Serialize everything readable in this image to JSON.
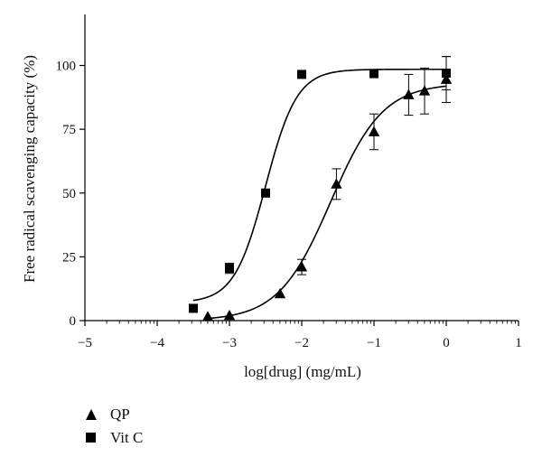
{
  "chart_data": {
    "type": "scatter",
    "xlabel": "log[drug] (mg/mL)",
    "ylabel": "Free radical scavenging capacity (%)",
    "xlim": [
      -5,
      1
    ],
    "ylim": [
      0,
      120
    ],
    "xticks": [
      -5,
      -4,
      -3,
      -2,
      -1,
      0,
      1
    ],
    "xtick_labels": [
      "−5",
      "−4",
      "−3",
      "−2",
      "−1",
      "0",
      "1"
    ],
    "yticks": [
      0,
      25,
      50,
      75,
      100
    ],
    "ytick_labels": [
      "0",
      "25",
      "50",
      "75",
      "100"
    ],
    "grid": false,
    "legend_position": "bottom-left",
    "series": [
      {
        "name": "QP",
        "marker": "triangle",
        "color": "#000000",
        "x": [
          -3.3,
          -3.0,
          -2.3,
          -2.0,
          -1.52,
          -1.0,
          -0.52,
          -0.3,
          0.0
        ],
        "y": [
          1.5,
          2.0,
          10.5,
          21.0,
          53.5,
          74.0,
          88.5,
          90.0,
          94.5
        ],
        "err": [
          0,
          0,
          0,
          3.0,
          6.0,
          7.0,
          8.0,
          9.0,
          9.0
        ],
        "fit": {
          "bottom": 0,
          "top": 93,
          "log_ec50": -1.6,
          "hill": 1.2
        }
      },
      {
        "name": "Vit C",
        "marker": "square",
        "color": "#000000",
        "x": [
          -3.5,
          -3.0,
          -2.5,
          -2.0,
          -1.0,
          0.0
        ],
        "y": [
          4.8,
          20.5,
          50.0,
          96.5,
          96.8,
          97.0
        ],
        "err": [
          0,
          2.0,
          0,
          0,
          0,
          6.5
        ],
        "fit": {
          "bottom": 7,
          "top": 98.5,
          "log_ec50": -2.5,
          "hill": 2.0
        }
      }
    ]
  },
  "legend": {
    "items": [
      {
        "label": "QP",
        "marker": "triangle"
      },
      {
        "label": "Vit C",
        "marker": "square"
      }
    ]
  }
}
